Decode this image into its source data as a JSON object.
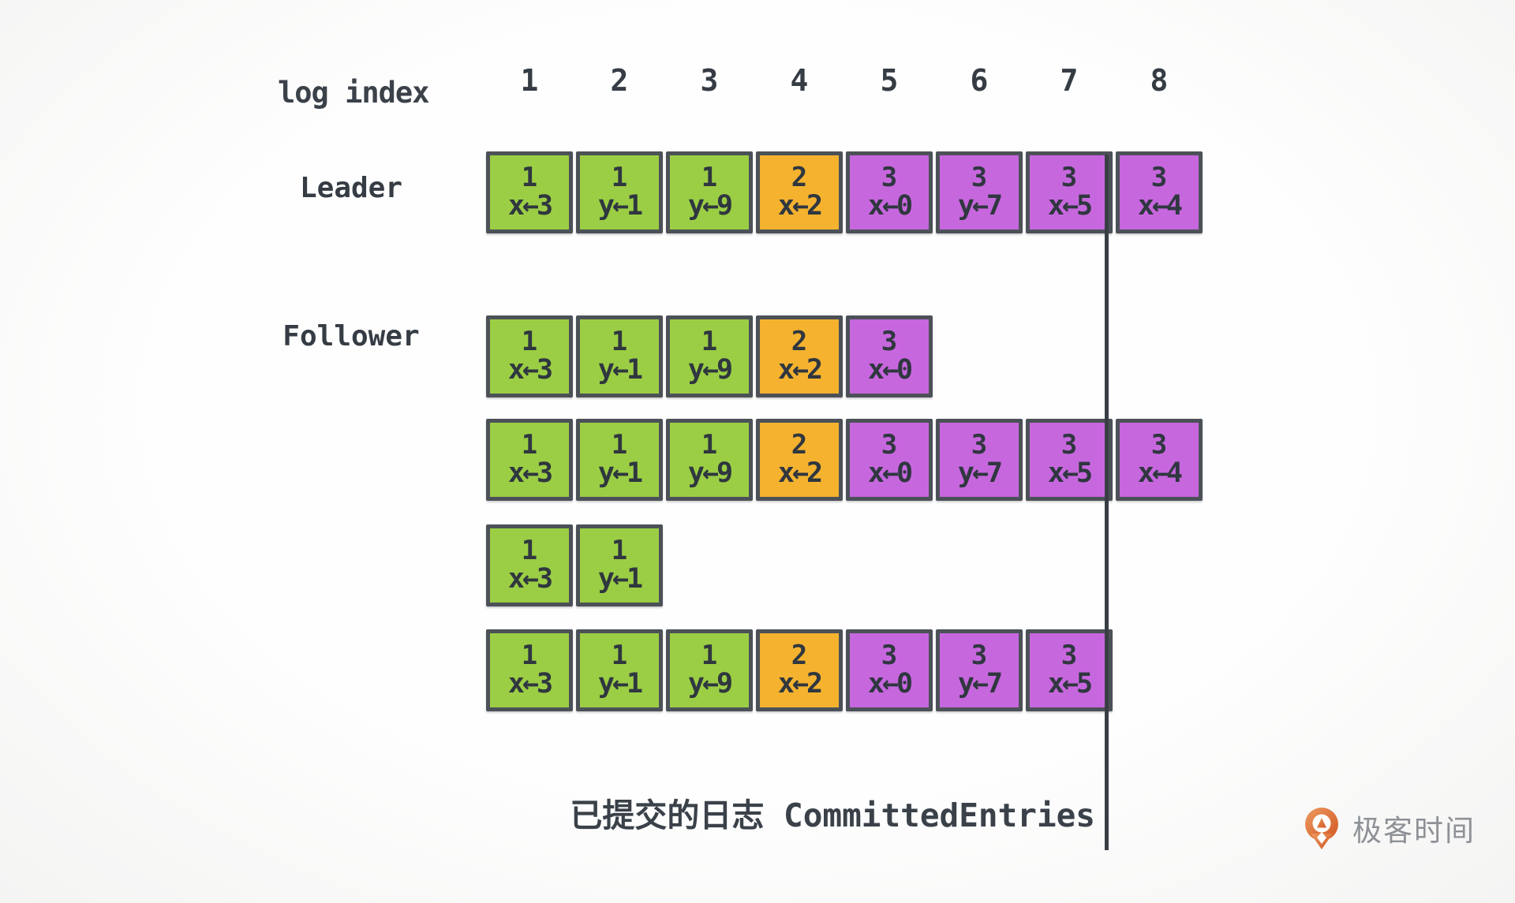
{
  "header": {
    "label": "log index",
    "indices": [
      "1",
      "2",
      "3",
      "4",
      "5",
      "6",
      "7",
      "8"
    ]
  },
  "colors": {
    "term1": "#9BCE44",
    "term2": "#F4B22F",
    "term3": "#C767DE",
    "border": "#4C5158",
    "entry_text": "#2F373F",
    "commit_line": "#383E44",
    "label_text": "#3A4149",
    "logo_orange_light": "#EC9A5F",
    "logo_orange_dark": "#D25722",
    "logo_text_color": "#8E9196"
  },
  "rows": [
    {
      "role": "leader",
      "label": "Leader",
      "entries": [
        {
          "term": "1",
          "cmd": "x←3"
        },
        {
          "term": "1",
          "cmd": "y←1"
        },
        {
          "term": "1",
          "cmd": "y←9"
        },
        {
          "term": "2",
          "cmd": "x←2"
        },
        {
          "term": "3",
          "cmd": "x←0"
        },
        {
          "term": "3",
          "cmd": "y←7"
        },
        {
          "term": "3",
          "cmd": "x←5"
        },
        {
          "term": "3",
          "cmd": "x←4"
        }
      ]
    },
    {
      "role": "follower-1",
      "label": "Follower",
      "entries": [
        {
          "term": "1",
          "cmd": "x←3"
        },
        {
          "term": "1",
          "cmd": "y←1"
        },
        {
          "term": "1",
          "cmd": "y←9"
        },
        {
          "term": "2",
          "cmd": "x←2"
        },
        {
          "term": "3",
          "cmd": "x←0"
        }
      ]
    },
    {
      "role": "follower-2",
      "label": "",
      "entries": [
        {
          "term": "1",
          "cmd": "x←3"
        },
        {
          "term": "1",
          "cmd": "y←1"
        },
        {
          "term": "1",
          "cmd": "y←9"
        },
        {
          "term": "2",
          "cmd": "x←2"
        },
        {
          "term": "3",
          "cmd": "x←0"
        },
        {
          "term": "3",
          "cmd": "y←7"
        },
        {
          "term": "3",
          "cmd": "x←5"
        },
        {
          "term": "3",
          "cmd": "x←4"
        }
      ]
    },
    {
      "role": "follower-3",
      "label": "",
      "entries": [
        {
          "term": "1",
          "cmd": "x←3"
        },
        {
          "term": "1",
          "cmd": "y←1"
        }
      ]
    },
    {
      "role": "follower-4",
      "label": "",
      "entries": [
        {
          "term": "1",
          "cmd": "x←3"
        },
        {
          "term": "1",
          "cmd": "y←1"
        },
        {
          "term": "1",
          "cmd": "y←9"
        },
        {
          "term": "2",
          "cmd": "x←2"
        },
        {
          "term": "3",
          "cmd": "x←0"
        },
        {
          "term": "3",
          "cmd": "y←7"
        },
        {
          "term": "3",
          "cmd": "x←5"
        }
      ]
    }
  ],
  "caption": {
    "zh": "已提交的日志",
    "en": "CommittedEntries"
  },
  "logo": {
    "text": "极客时间"
  }
}
